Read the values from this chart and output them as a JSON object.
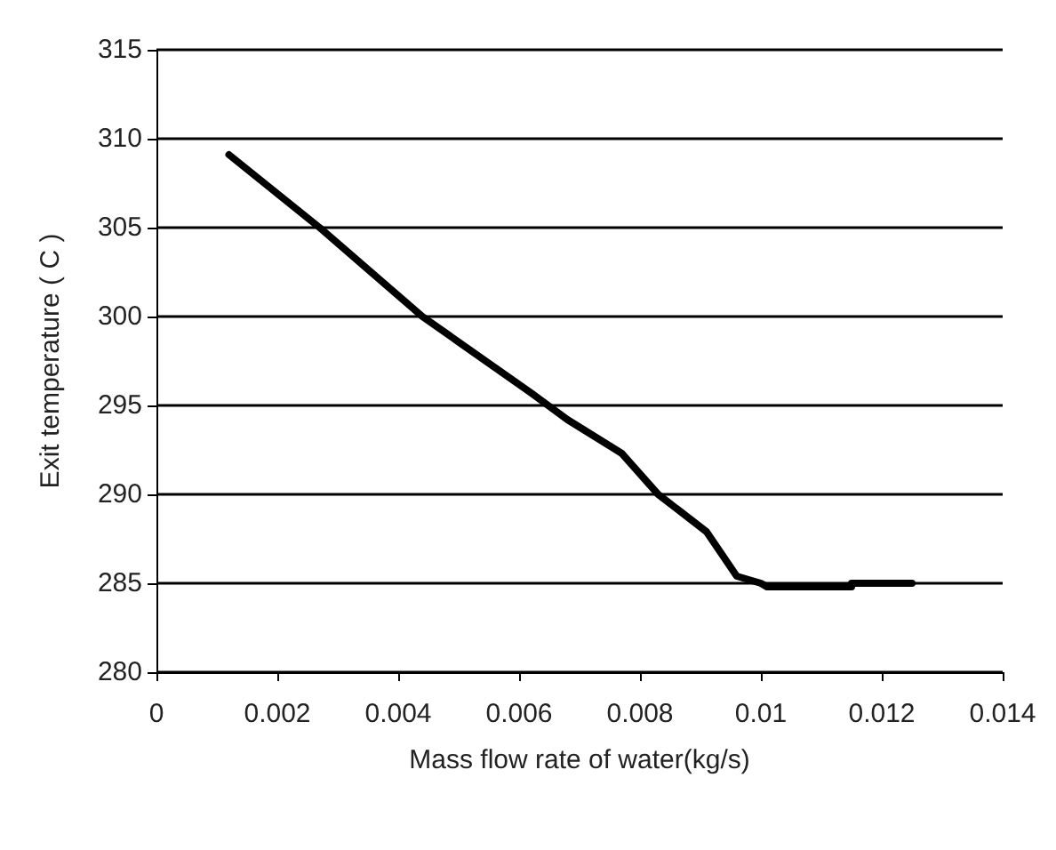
{
  "chart_data": {
    "type": "line",
    "xlabel": "Mass flow rate of water(kg/s)",
    "ylabel": "Exit temperature ( C )",
    "x": [
      0.0012,
      0.0027,
      0.0044,
      0.0062,
      0.0068,
      0.0077,
      0.0083,
      0.0091,
      0.0096,
      0.01,
      0.0101,
      0.0115,
      0.0115,
      0.0125
    ],
    "series": [
      {
        "color": "#000000",
        "values": [
          309.1,
          305,
          300,
          295.7,
          294.2,
          292.3,
          290,
          287.9,
          285.4,
          285,
          284.8,
          284.8,
          285,
          285
        ]
      }
    ],
    "xlim": [
      0,
      0.014
    ],
    "xticks": [
      0,
      0.002,
      0.004,
      0.006,
      0.008,
      0.01,
      0.012,
      0.014
    ],
    "ylim": [
      280,
      315
    ],
    "yticks": [
      280,
      285,
      290,
      295,
      300,
      305,
      310,
      315
    ],
    "grid": "y",
    "marker": "none",
    "line_style": "solid"
  }
}
